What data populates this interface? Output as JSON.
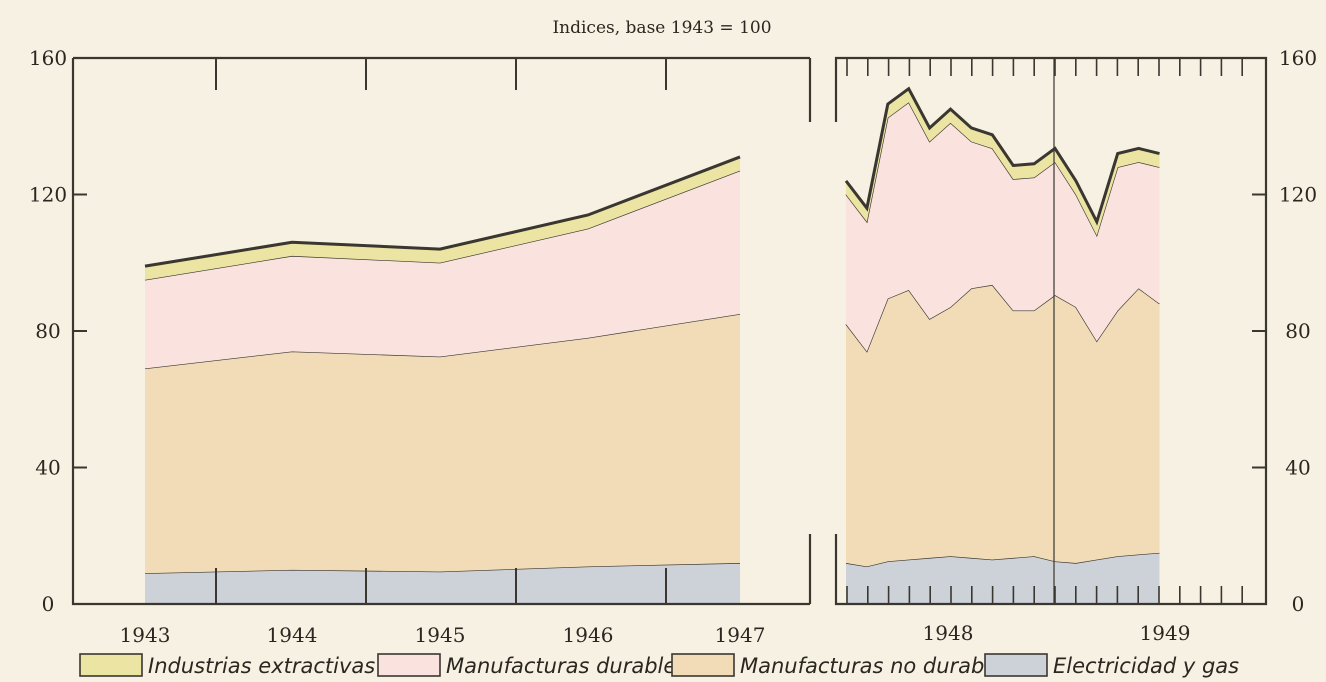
{
  "chart_data": {
    "type": "area",
    "title": "Indices, base 1943 = 100",
    "stacking": "stacked",
    "ylim": [
      0,
      160
    ],
    "yticks": [
      "0",
      "40",
      "80",
      "120",
      "160"
    ],
    "colors": {
      "extractivas": "#ebe4a3",
      "durables": "#fae2df",
      "no_durables": "#f1dcb7",
      "electricidad": "#cdd2d8",
      "line": "#3a3630"
    },
    "annual": {
      "x": [
        "1943",
        "1944",
        "1945",
        "1946",
        "1947"
      ],
      "series": [
        {
          "name": "Electricidad y gas",
          "values": [
            9,
            10,
            9.5,
            11,
            12
          ]
        },
        {
          "name": "Manufacturas no durables",
          "values": [
            60,
            64,
            63,
            67,
            73
          ]
        },
        {
          "name": "Manufacturas durables",
          "values": [
            26,
            28,
            27.5,
            32,
            42
          ]
        },
        {
          "name": "Industrias extractivas",
          "values": [
            4,
            4,
            4,
            4,
            4
          ]
        }
      ]
    },
    "monthly": {
      "x_labels": [
        "1948",
        "1949"
      ],
      "series": [
        {
          "name": "Electricidad y gas",
          "values": [
            12,
            11,
            12.5,
            13,
            13.5,
            14,
            13.5,
            13,
            13.5,
            14,
            12.5,
            12,
            13,
            14,
            14.5,
            15
          ]
        },
        {
          "name": "Manufacturas no durables",
          "values": [
            70,
            63,
            77,
            79,
            70,
            73,
            79,
            80.5,
            72.5,
            72,
            78,
            75,
            64,
            72,
            78,
            73
          ]
        },
        {
          "name": "Manufacturas durables",
          "values": [
            38,
            38,
            53,
            55,
            52,
            54,
            43,
            40,
            38.5,
            39,
            39,
            33,
            31,
            42,
            37,
            40
          ]
        },
        {
          "name": "Industrias extractivas",
          "values": [
            4,
            4,
            4,
            4,
            4,
            4,
            4,
            4,
            4,
            4,
            4,
            4,
            4,
            4,
            4,
            4
          ]
        }
      ]
    },
    "legend": [
      {
        "key": "extractivas",
        "label": "Industrias extractivas"
      },
      {
        "key": "durables",
        "label": "Manufacturas durables"
      },
      {
        "key": "no_durables",
        "label": "Manufacturas no durables"
      },
      {
        "key": "electricidad",
        "label": "Electricidad y gas"
      }
    ]
  }
}
